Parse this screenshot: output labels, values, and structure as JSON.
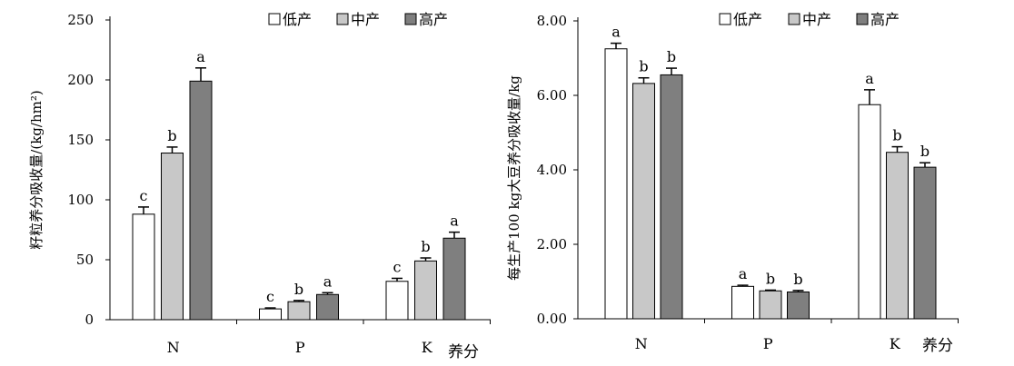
{
  "chart_data": [
    {
      "type": "bar",
      "ylabel": "籽粒养分吸收量/(kg/hm²)",
      "xlabel": "养分",
      "categories": [
        "N",
        "P",
        "K"
      ],
      "ylim": [
        0,
        250
      ],
      "yticks": [
        "0",
        "50",
        "100",
        "150",
        "200",
        "250"
      ],
      "legend": "top-right",
      "series": [
        {
          "name": "低产",
          "color": "#ffffff",
          "values": [
            88,
            9,
            32
          ],
          "errors": [
            6,
            0.8,
            2.5
          ],
          "labels": [
            "c",
            "c",
            "c"
          ]
        },
        {
          "name": "中产",
          "color": "#c8c8c8",
          "values": [
            139,
            15,
            49
          ],
          "errors": [
            5,
            1,
            2.5
          ],
          "labels": [
            "b",
            "b",
            "b"
          ]
        },
        {
          "name": "高产",
          "color": "#7f7f7f",
          "values": [
            199,
            21,
            68
          ],
          "errors": [
            11,
            1.5,
            5
          ],
          "labels": [
            "a",
            "a",
            "a"
          ]
        }
      ]
    },
    {
      "type": "bar",
      "ylabel": "每生产100 kg大豆养分吸收量/kg",
      "xlabel": "养分",
      "categories": [
        "N",
        "P",
        "K"
      ],
      "ylim": [
        0,
        8
      ],
      "yticks": [
        "0.00",
        "2.00",
        "4.00",
        "6.00",
        "8.00"
      ],
      "legend": "top-right",
      "series": [
        {
          "name": "低产",
          "color": "#ffffff",
          "values": [
            7.25,
            0.87,
            5.75
          ],
          "errors": [
            0.15,
            0.03,
            0.4
          ],
          "labels": [
            "a",
            "a",
            "a"
          ]
        },
        {
          "name": "中产",
          "color": "#c8c8c8",
          "values": [
            6.32,
            0.75,
            4.47
          ],
          "errors": [
            0.15,
            0.02,
            0.15
          ],
          "labels": [
            "b",
            "b",
            "b"
          ]
        },
        {
          "name": "高产",
          "color": "#7f7f7f",
          "values": [
            6.55,
            0.72,
            4.07
          ],
          "errors": [
            0.18,
            0.04,
            0.12
          ],
          "labels": [
            "b",
            "b",
            "b"
          ]
        }
      ]
    }
  ]
}
